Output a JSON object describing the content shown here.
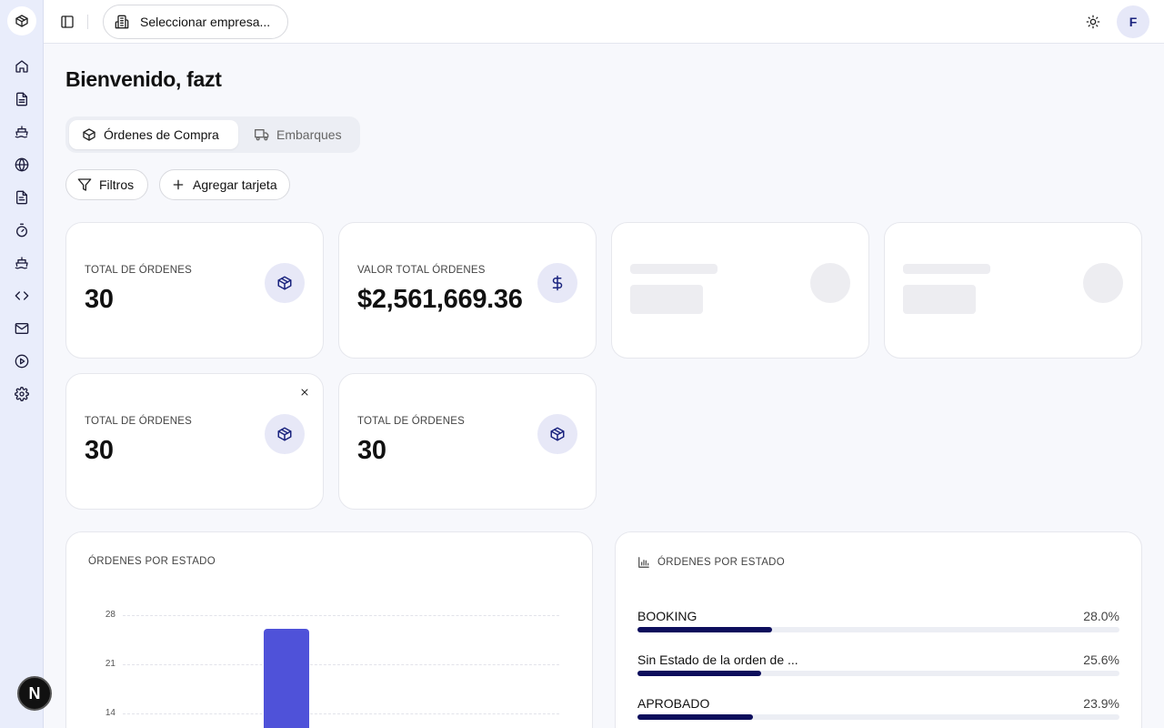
{
  "header": {
    "company_select_label": "Seleccionar empresa...",
    "avatar_initial": "F"
  },
  "sidebar": {
    "items": [
      "home-icon",
      "document-icon",
      "ship-icon",
      "globe-icon",
      "file-text-icon",
      "timer-icon",
      "ship-icon",
      "code-icon",
      "mail-icon",
      "play-circle-icon",
      "gear-icon"
    ],
    "dev_badge": "N"
  },
  "main": {
    "title": "Bienvenido, fazt",
    "tabs": [
      {
        "label": "Órdenes de Compra",
        "active": true
      },
      {
        "label": "Embarques",
        "active": false
      }
    ],
    "filters_label": "Filtros",
    "add_card_label": "Agregar tarjeta"
  },
  "cards": [
    {
      "label": "TOTAL DE ÓRDENES",
      "value": "30",
      "icon": "package-icon"
    },
    {
      "label": "VALOR TOTAL ÓRDENES",
      "value": "$2,561,669.36",
      "icon": "dollar-icon"
    },
    {
      "label": "TOTAL DE ÓRDENES",
      "value": "30",
      "icon": "package-icon",
      "closable": true
    },
    {
      "label": "TOTAL DE ÓRDENES",
      "value": "30",
      "icon": "package-icon"
    }
  ],
  "chart_panel": {
    "title": "ÓRDENES POR ESTADO"
  },
  "chart_data": {
    "type": "bar",
    "title": "ÓRDENES POR ESTADO",
    "y_ticks": [
      "28",
      "21",
      "14"
    ],
    "ylim": [
      0,
      28
    ],
    "visible_bars": [
      {
        "value": 26
      }
    ],
    "grid": true
  },
  "status_panel": {
    "title": "ÓRDENES POR ESTADO",
    "rows": [
      {
        "name": "BOOKING",
        "pct": "28.0%",
        "fraction": 0.28
      },
      {
        "name": "Sin Estado de la orden de ...",
        "pct": "25.6%",
        "fraction": 0.256
      },
      {
        "name": "APROBADO",
        "pct": "23.9%",
        "fraction": 0.239
      }
    ]
  },
  "colors": {
    "accent": "#4f52d9",
    "progress": "#0d0e5c",
    "icon_bg": "#e7e8f7"
  }
}
